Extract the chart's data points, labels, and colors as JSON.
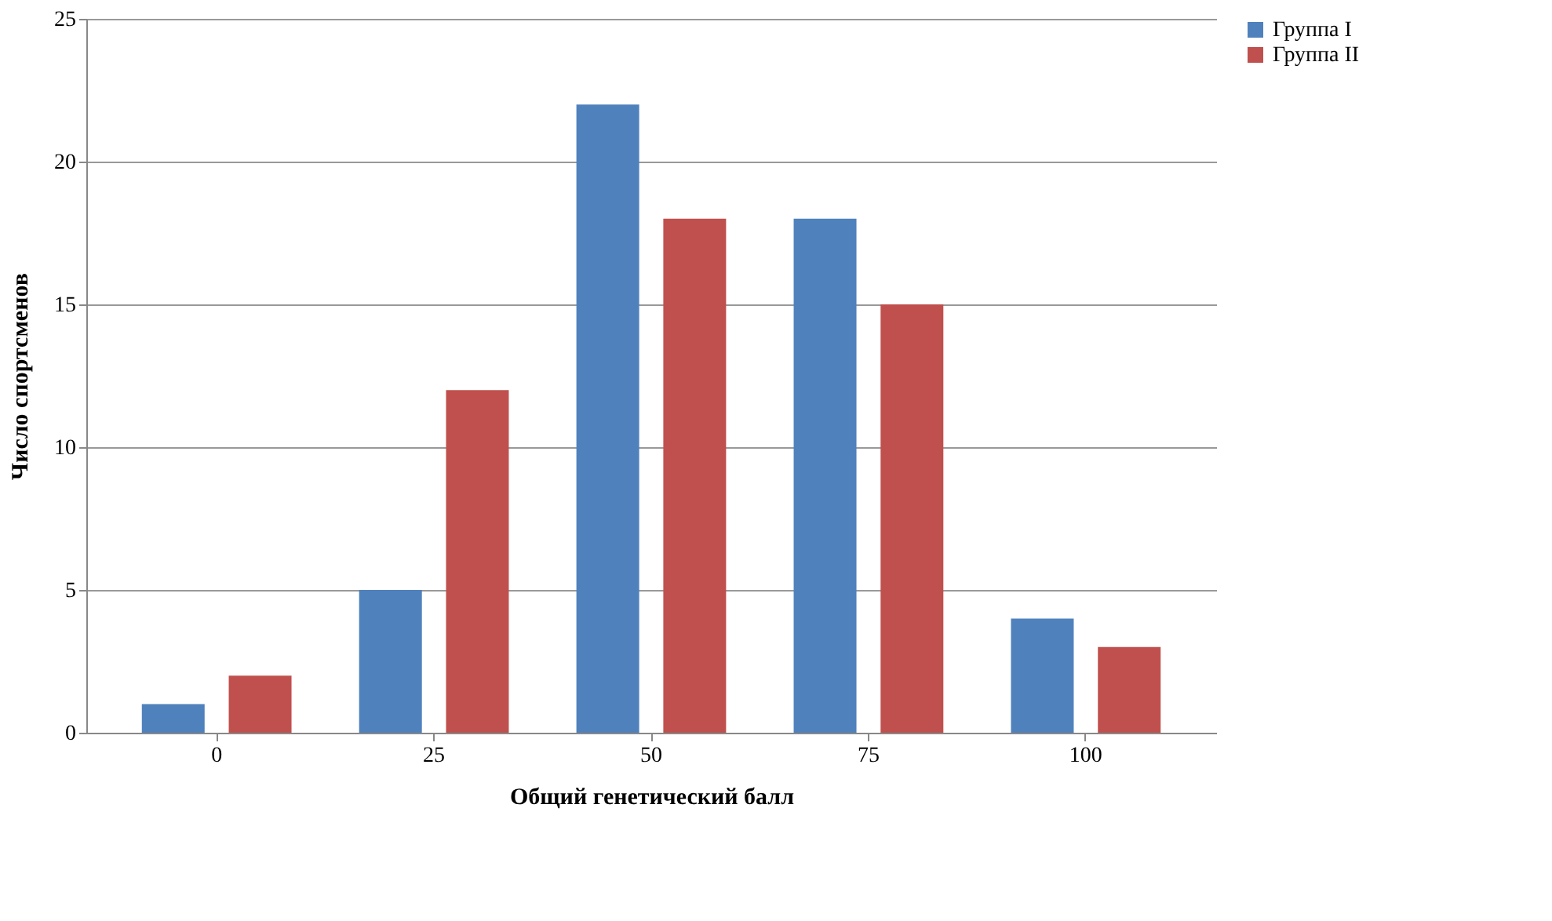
{
  "chart_data": {
    "type": "bar",
    "xlabel": "Общий генетический балл",
    "ylabel": "Число спортсменов",
    "categories": [
      "0",
      "25",
      "50",
      "75",
      "100"
    ],
    "series": [
      {
        "name": "Группа I",
        "color": "#4f81bd",
        "values": [
          1,
          5,
          22,
          18,
          4
        ]
      },
      {
        "name": "Группа II",
        "color": "#c0504d",
        "values": [
          2,
          12,
          18,
          15,
          3
        ]
      }
    ],
    "ylim": [
      0,
      25
    ],
    "yticks": [
      0,
      5,
      10,
      15,
      20,
      25
    ],
    "grid": "y",
    "legend": "right"
  }
}
